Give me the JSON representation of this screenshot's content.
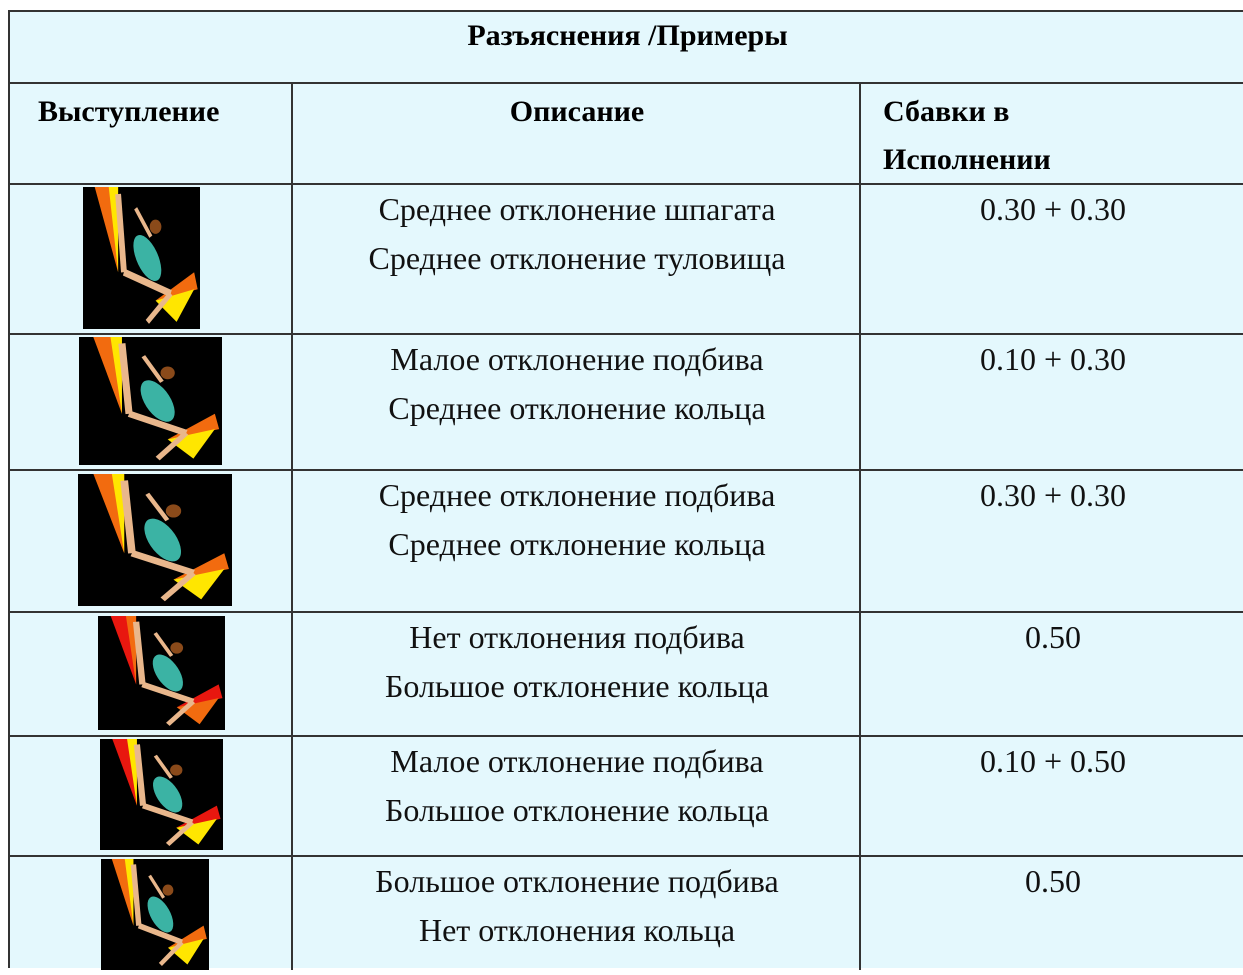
{
  "header": {
    "title": "Разъяснения /Примеры"
  },
  "table": {
    "columns": [
      "Выступление",
      "Описание",
      "Сбавки в Исполнении"
    ],
    "rows": [
      {
        "description": [
          "Среднее отклонение шпагата",
          "Среднее отклонение туловища"
        ],
        "deduction": "0.30 + 0.30"
      },
      {
        "description": [
          "Малое отклонение подбива",
          "Среднее отклонение кольца"
        ],
        "deduction": "0.10 + 0.30"
      },
      {
        "description": [
          "Среднее отклонение подбива",
          "Среднее отклонение кольца"
        ],
        "deduction": "0.30 + 0.30"
      },
      {
        "description": [
          "Нет отклонения подбива",
          "Большое отклонение кольца"
        ],
        "deduction": "0.50"
      },
      {
        "description": [
          "Малое отклонение подбива",
          "Большое отклонение кольца"
        ],
        "deduction": "0.10 + 0.50"
      },
      {
        "description": [
          "Большое отклонение подбива",
          "Нет отклонения кольца"
        ],
        "deduction": "0.50"
      }
    ]
  }
}
